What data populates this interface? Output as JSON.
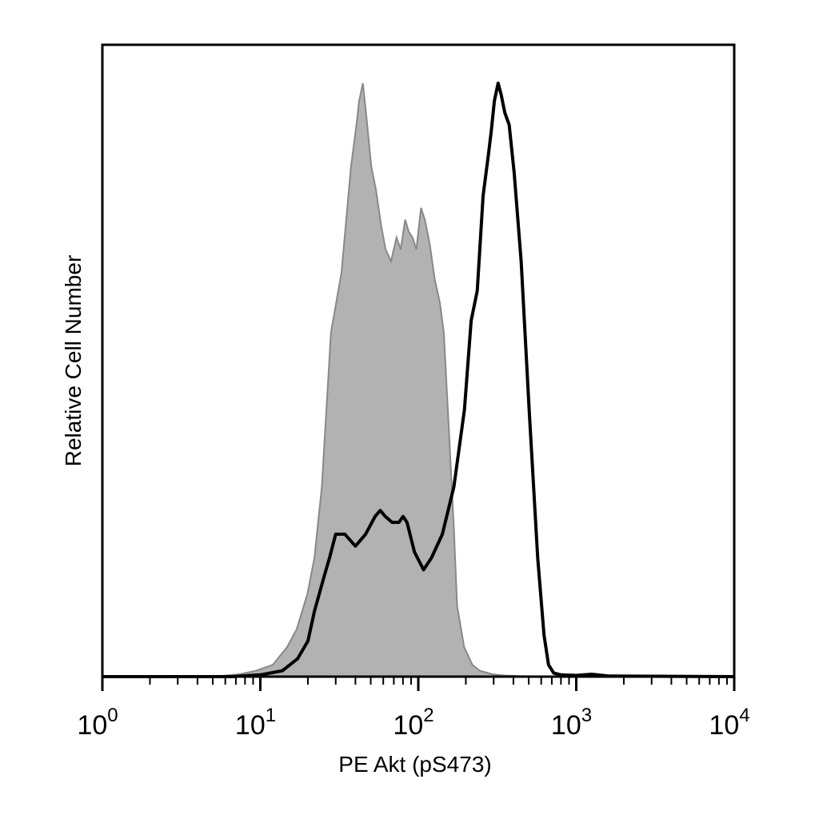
{
  "chart_data": {
    "type": "area",
    "title": "",
    "xlabel": "PE Akt (pS473)",
    "ylabel": "Relative Cell Number",
    "xscale": "log",
    "xlim": [
      1,
      10000
    ],
    "ylim": [
      0,
      1
    ],
    "grid": false,
    "legend": "none",
    "x_tick_labels": [
      {
        "base": "10",
        "exp": "0"
      },
      {
        "base": "10",
        "exp": "1"
      },
      {
        "base": "10",
        "exp": "2"
      },
      {
        "base": "10",
        "exp": "3"
      },
      {
        "base": "10",
        "exp": "4"
      }
    ],
    "colors": {
      "filled_series_fill": "#b2b2b2",
      "filled_series_line": "#888888",
      "line": "#000000",
      "frame": "#000000",
      "background": "#ffffff"
    },
    "series": [
      {
        "style": "filled",
        "x": [
          1,
          5,
          7.4,
          9.4,
          12,
          14.8,
          17,
          19.9,
          22,
          24.5,
          28,
          32.6,
          37.5,
          40.6,
          42.2,
          44.6,
          47.1,
          50.4,
          54,
          58.2,
          62.1,
          67.2,
          72.8,
          77.4,
          82.6,
          86.9,
          92,
          97.2,
          104,
          110,
          118,
          127,
          137,
          145,
          156,
          168,
          176,
          195,
          220,
          245,
          295,
          346,
          440,
          1000,
          10000
        ],
        "y": [
          0,
          0,
          0.004,
          0.01,
          0.02,
          0.05,
          0.08,
          0.14,
          0.2,
          0.32,
          0.58,
          0.68,
          0.86,
          0.93,
          0.97,
          1.0,
          0.94,
          0.86,
          0.82,
          0.76,
          0.72,
          0.7,
          0.74,
          0.72,
          0.77,
          0.75,
          0.74,
          0.72,
          0.79,
          0.77,
          0.73,
          0.67,
          0.63,
          0.58,
          0.42,
          0.25,
          0.12,
          0.05,
          0.02,
          0.01,
          0.004,
          0.002,
          0.001,
          0,
          0
        ]
      },
      {
        "style": "line",
        "x": [
          1,
          6.6,
          10,
          13.8,
          17.2,
          20,
          22,
          25.4,
          27.4,
          30,
          34.3,
          40,
          46.4,
          53.3,
          57.4,
          61.8,
          68.3,
          75.4,
          80.1,
          84.8,
          94.6,
          108,
          121,
          142,
          168,
          196,
          216,
          236,
          257,
          278,
          290,
          303,
          320,
          335,
          353,
          376,
          404,
          448,
          503,
          570,
          625,
          667,
          720,
          800,
          1000,
          1250,
          1600,
          10000
        ],
        "y": [
          0,
          0,
          0.003,
          0.01,
          0.03,
          0.06,
          0.11,
          0.17,
          0.2,
          0.24,
          0.24,
          0.22,
          0.24,
          0.27,
          0.28,
          0.27,
          0.26,
          0.26,
          0.27,
          0.26,
          0.21,
          0.18,
          0.2,
          0.24,
          0.32,
          0.45,
          0.6,
          0.65,
          0.81,
          0.88,
          0.92,
          0.97,
          1.0,
          0.98,
          0.95,
          0.93,
          0.85,
          0.7,
          0.45,
          0.2,
          0.07,
          0.02,
          0.006,
          0.003,
          0.002,
          0.004,
          0.001,
          0
        ]
      }
    ]
  }
}
